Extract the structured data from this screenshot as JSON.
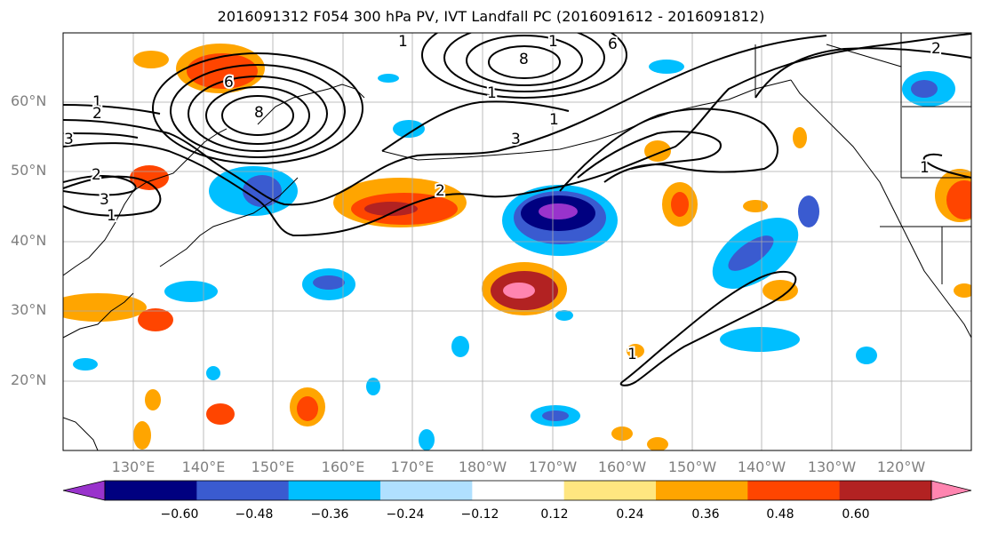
{
  "title": "2016091312 F054 300 hPa PV, IVT Landfall PC (2016091612 - 2016091812)",
  "lat_labels": [
    "60°N",
    "50°N",
    "40°N",
    "30°N",
    "20°N"
  ],
  "lon_labels": [
    "130°E",
    "140°E",
    "150°E",
    "160°E",
    "170°E",
    "180°W",
    "170°W",
    "160°W",
    "150°W",
    "140°W",
    "130°W",
    "120°W"
  ],
  "colorbar": {
    "colors": [
      "#9933cc",
      "#000080",
      "#3a5bd0",
      "#00bfff",
      "#b0e0ff",
      "#ffffff",
      "#ffe680",
      "#ffa500",
      "#ff4500",
      "#b22222",
      "#ff85b0"
    ],
    "tick_labels": [
      "−0.60",
      "−0.48",
      "−0.36",
      "−0.24",
      "−0.12",
      "0.12",
      "0.24",
      "0.36",
      "0.48",
      "0.60"
    ]
  },
  "contour_labels": [
    "1",
    "1",
    "2",
    "3",
    "6",
    "8",
    "2",
    "3",
    "1",
    "1",
    "3",
    "1",
    "1",
    "6",
    "8",
    "2",
    "1",
    "1",
    "2"
  ]
}
